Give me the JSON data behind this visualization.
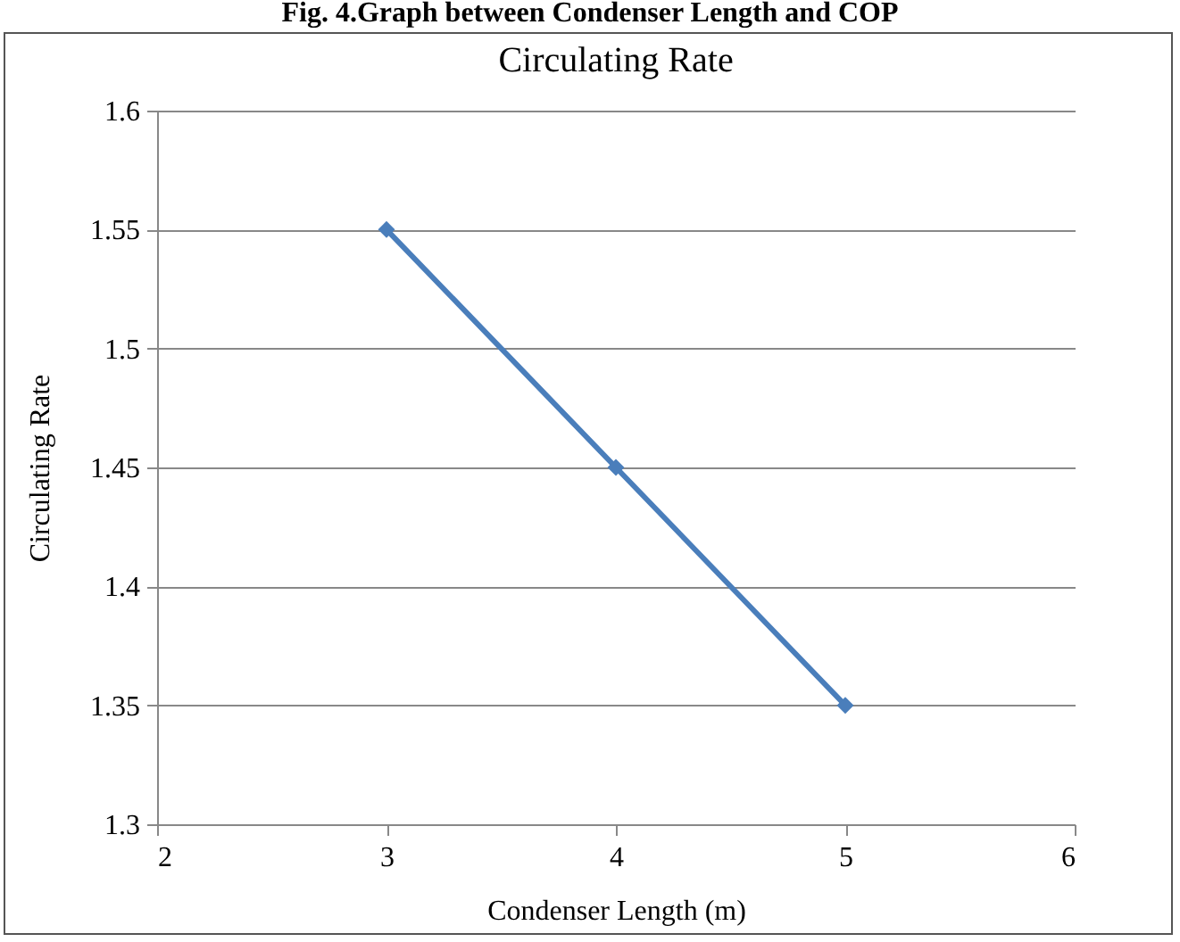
{
  "chart_data": {
    "type": "line",
    "title": "Circulating Rate",
    "annotations": [
      "Fig. 4.Graph between Condenser Length and COP"
    ],
    "xlabel": "Condenser Length (m)",
    "ylabel": "Circulating Rate",
    "x": [
      3,
      4,
      5
    ],
    "series": [
      {
        "color": "#4a7ebb",
        "values": [
          1.55,
          1.45,
          1.35
        ]
      }
    ],
    "xlim": [
      2,
      6
    ],
    "xticks": [
      2,
      3,
      4,
      5,
      6
    ],
    "ylim": [
      1.3,
      1.6
    ],
    "yticks": [
      1.3,
      1.35,
      1.4,
      1.45,
      1.5,
      1.55,
      1.6
    ],
    "grid": "y",
    "marker": "diamond",
    "line_style": "solid"
  }
}
